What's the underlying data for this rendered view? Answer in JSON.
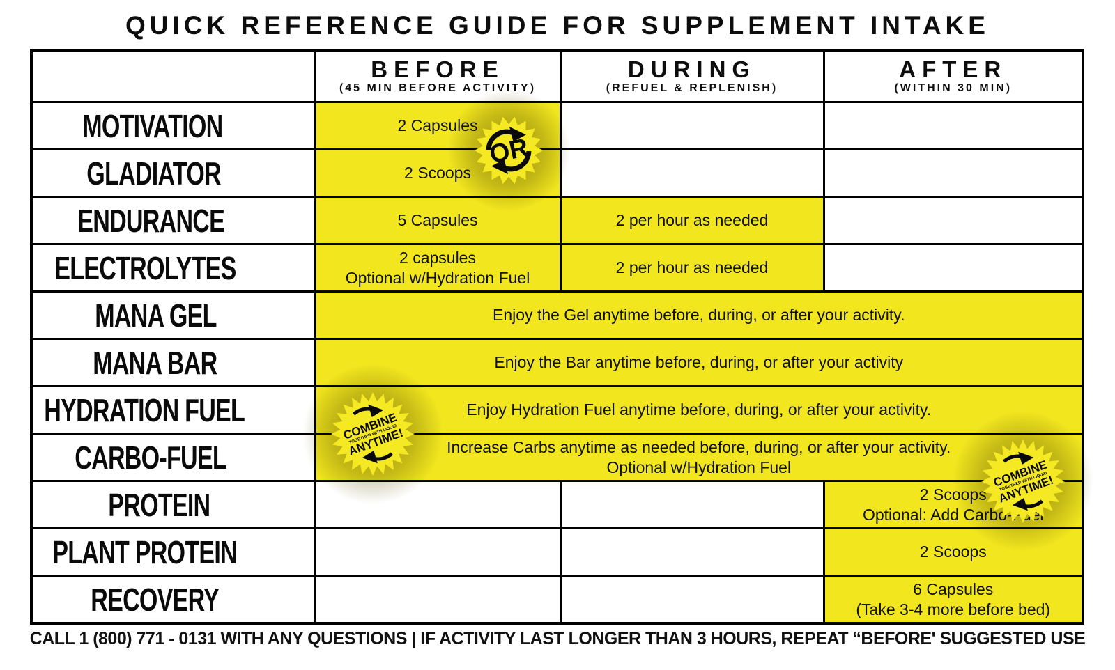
{
  "title": "QUICK REFERENCE GUIDE FOR SUPPLEMENT INTAKE",
  "table": {
    "columns": [
      {
        "label": "BEFORE",
        "sub": "(45 MIN BEFORE ACTIVITY)"
      },
      {
        "label": "DURING",
        "sub": "(REFUEL & REPLENISH)"
      },
      {
        "label": "AFTER",
        "sub": "(WITHIN 30 MIN)"
      }
    ],
    "rows": [
      {
        "name": "MOTIVATION",
        "before": "2 Capsules"
      },
      {
        "name": "GLADIATOR",
        "before": "2 Scoops"
      },
      {
        "name": "ENDURANCE",
        "before": "5 Capsules",
        "during": "2 per hour as needed"
      },
      {
        "name": "ELECTROLYTES",
        "before": "2 capsules\nOptional w/Hydration Fuel",
        "during": "2 per hour as needed"
      },
      {
        "name": "MANA GEL",
        "all": "Enjoy the Gel anytime before, during, or after your activity."
      },
      {
        "name": "MANA BAR",
        "all": "Enjoy the Bar anytime before, during, or after your activity"
      },
      {
        "name": "HYDRATION FUEL",
        "all": "Enjoy Hydration Fuel anytime before, during, or after your activity."
      },
      {
        "name": "CARBO-FUEL",
        "all": "Increase Carbs anytime as needed before, during, or after your activity.\nOptional w/Hydration Fuel"
      },
      {
        "name": "PROTEIN",
        "after": "2 Scoops\nOptional: Add Carbo-Fuel"
      },
      {
        "name": "PLANT PROTEIN",
        "after": "2 Scoops"
      },
      {
        "name": "RECOVERY",
        "after": "6 Capsules\n(Take 3-4 more before bed)"
      }
    ]
  },
  "badges": {
    "or_label": "OR",
    "combine_line1": "COMBINE",
    "combine_line2": "TOGETHER WITH LIQUID",
    "combine_line3": "ANYTIME!"
  },
  "footer": "CALL 1 (800) 771 - 0131 WITH ANY QUESTIONS | IF ACTIVITY LAST LONGER THAN 3 HOURS, REPEAT “BEFORE' SUGGESTED USE",
  "colors": {
    "highlight_yellow": "#f2e71e",
    "ink_black": "#000000",
    "halo_olive": "#605608"
  }
}
